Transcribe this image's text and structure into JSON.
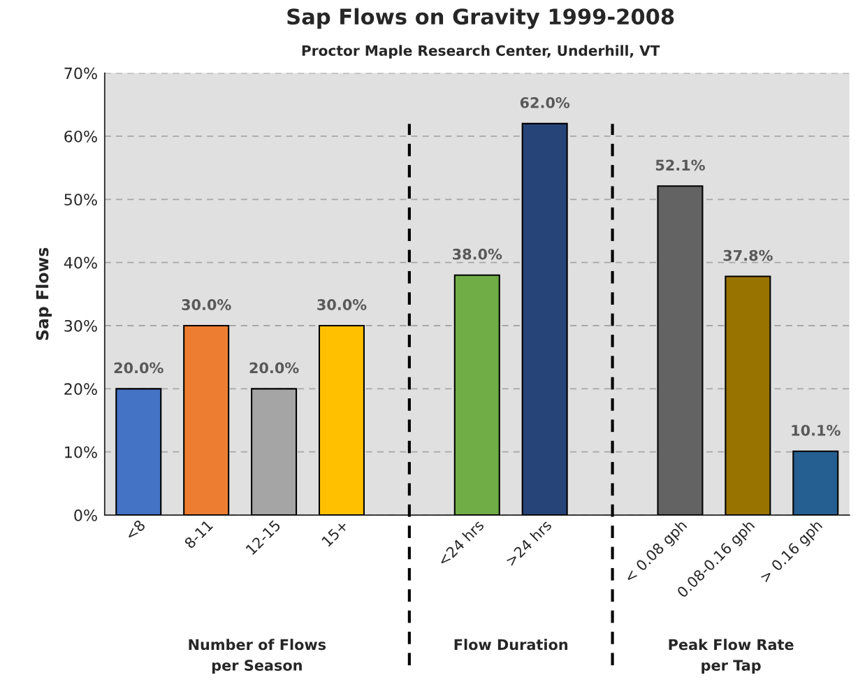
{
  "chart_data": {
    "type": "bar",
    "title": "Sap Flows on Gravity 1999-2008",
    "subtitle": "Proctor Maple Research Center, Underhill, VT",
    "ylabel": "Sap Flows",
    "categories": [
      "<8",
      "8-11",
      "12-15",
      "15+",
      null,
      "<24 hrs",
      ">24 hrs",
      null,
      "< 0.08 gph",
      "0.08-0.16 gph",
      "> 0.16 gph"
    ],
    "values": [
      20.0,
      30.0,
      20.0,
      30.0,
      null,
      38.0,
      62.0,
      null,
      52.1,
      37.8,
      10.1
    ],
    "colors": [
      "#4472c4",
      "#ed7d31",
      "#a5a5a5",
      "#ffc000",
      null,
      "#70ad47",
      "#264478",
      null,
      "#636363",
      "#997300",
      "#255e91"
    ],
    "value_labels": [
      "20.0%",
      "30.0%",
      "20.0%",
      "30.0%",
      null,
      "38.0%",
      "62.0%",
      null,
      "52.1%",
      "37.8%",
      "10.1%"
    ],
    "ylim": [
      0,
      70
    ],
    "yticks": [
      {
        "value": 0,
        "label": "0%"
      },
      {
        "value": 10,
        "label": "10%"
      },
      {
        "value": 20,
        "label": "20%"
      },
      {
        "value": 30,
        "label": "30%"
      },
      {
        "value": 40,
        "label": "40%"
      },
      {
        "value": 50,
        "label": "50%"
      },
      {
        "value": 60,
        "label": "60%"
      },
      {
        "value": 70,
        "label": "70%"
      }
    ],
    "grid": "y",
    "annotations": [
      "Number of Flows\nper Season",
      "Flow Duration",
      "Peak Flow Rate\nper Tap"
    ]
  }
}
